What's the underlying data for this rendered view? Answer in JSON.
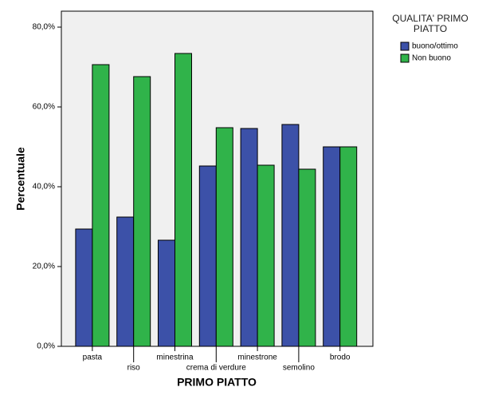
{
  "chart_data": {
    "type": "bar",
    "categories": [
      "pasta",
      "riso",
      "minestrina",
      "crema di verdure",
      "minestrone",
      "semolino",
      "brodo"
    ],
    "series": [
      {
        "name": "buono/ottimo",
        "color": "#3c51a8",
        "values": [
          29.4,
          32.4,
          26.6,
          45.2,
          54.6,
          55.6,
          50.0
        ]
      },
      {
        "name": "Non buono",
        "color": "#30b34a",
        "values": [
          70.6,
          67.6,
          73.4,
          54.8,
          45.4,
          44.4,
          50.0
        ]
      }
    ],
    "legend_title": "QUALITA' PRIMO PIATTO",
    "xlabel": "PRIMO PIATTO",
    "ylabel": "Percentuale",
    "ylim": [
      0,
      84
    ],
    "yticks": [
      {
        "value": 0,
        "label": "0,0%"
      },
      {
        "value": 20,
        "label": "20,0%"
      },
      {
        "value": 40,
        "label": "40,0%"
      },
      {
        "value": 60,
        "label": "60,0%"
      },
      {
        "value": 80,
        "label": "80,0%"
      }
    ],
    "legend_position": "right"
  }
}
